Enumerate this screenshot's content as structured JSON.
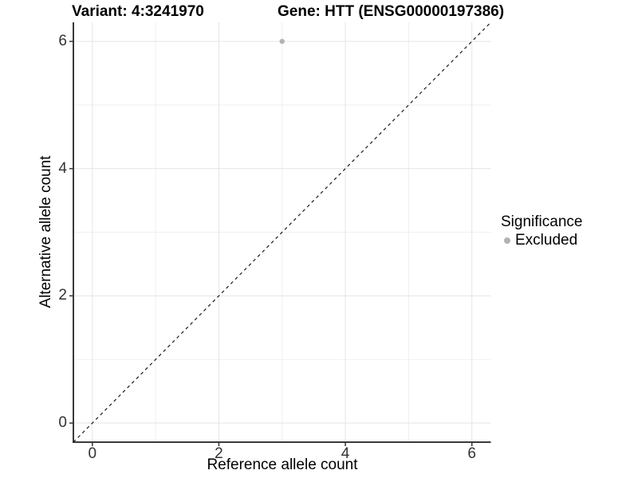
{
  "chart_data": {
    "type": "scatter",
    "title_left": "Variant: 4:3241970",
    "title_right": "Gene: HTT (ENSG00000197386)",
    "xlabel": "Reference allele count",
    "ylabel": "Alternative allele count",
    "xlim": [
      -0.3,
      6.3
    ],
    "ylim": [
      -0.3,
      6.3
    ],
    "x_ticks": [
      0,
      2,
      4,
      6
    ],
    "y_ticks": [
      0,
      2,
      4,
      6
    ],
    "x_minor_ticks": [
      1,
      3,
      5
    ],
    "y_minor_ticks": [
      1,
      3,
      5
    ],
    "grid": "major+minor",
    "points": [
      {
        "x": 3,
        "y": 6,
        "series": "Excluded",
        "color": "#b3b3b3"
      }
    ],
    "reference_line": {
      "kind": "identity",
      "dashed": true,
      "color": "#1a1a1a"
    },
    "legend": {
      "title": "Significance",
      "position": "right",
      "items": [
        {
          "label": "Excluded",
          "color": "#b3b3b3"
        }
      ]
    },
    "colors": {
      "grid_major": "#e5e5e5",
      "grid_minor": "#efefef",
      "axis_line": "#3a3a3a",
      "tick_mark": "#333333",
      "tick_text": "#333333"
    }
  }
}
